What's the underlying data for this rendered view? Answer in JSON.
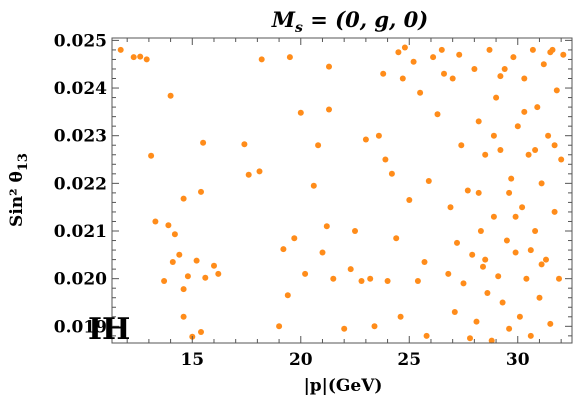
{
  "chart_data": {
    "type": "scatter",
    "title": "Ms = (0, g, 0)",
    "xlabel": "|p|(GeV)",
    "ylabel": "Sin² θ13",
    "panel_label": "IH",
    "xlim": [
      11.3,
      32.5
    ],
    "ylim": [
      0.01865,
      0.02505
    ],
    "x_ticks": [
      15,
      20,
      25,
      30
    ],
    "x_tick_labels": [
      "15",
      "20",
      "25",
      "30"
    ],
    "y_ticks": [
      0.019,
      0.02,
      0.021,
      0.022,
      0.023,
      0.024,
      0.025
    ],
    "y_tick_labels": [
      "0.019",
      "0.020",
      "0.021",
      "0.022",
      "0.023",
      "0.024",
      "0.025"
    ],
    "grid": false,
    "legend": "none",
    "marker_color": "#ff8c1a",
    "series": [
      {
        "points": [
          [
            11.7,
            0.0248
          ],
          [
            12.3,
            0.02465
          ],
          [
            12.6,
            0.02466
          ],
          [
            12.9,
            0.0246
          ],
          [
            13.1,
            0.02258
          ],
          [
            13.3,
            0.0212
          ],
          [
            13.7,
            0.01995
          ],
          [
            13.9,
            0.02112
          ],
          [
            14.0,
            0.02384
          ],
          [
            14.1,
            0.02035
          ],
          [
            14.2,
            0.02093
          ],
          [
            14.4,
            0.0205
          ],
          [
            14.6,
            0.01978
          ],
          [
            14.6,
            0.02168
          ],
          [
            14.6,
            0.0192
          ],
          [
            14.8,
            0.02005
          ],
          [
            15.0,
            0.01878
          ],
          [
            15.2,
            0.02038
          ],
          [
            15.4,
            0.01888
          ],
          [
            15.5,
            0.02285
          ],
          [
            15.4,
            0.02182
          ],
          [
            15.6,
            0.02002
          ],
          [
            16.0,
            0.02027
          ],
          [
            16.2,
            0.0201
          ],
          [
            17.4,
            0.02282
          ],
          [
            17.6,
            0.02218
          ],
          [
            18.1,
            0.02225
          ],
          [
            18.2,
            0.0246
          ],
          [
            19.0,
            0.019
          ],
          [
            19.2,
            0.02062
          ],
          [
            19.4,
            0.01965
          ],
          [
            19.5,
            0.02465
          ],
          [
            19.7,
            0.02085
          ],
          [
            20.0,
            0.02348
          ],
          [
            20.2,
            0.0201
          ],
          [
            20.6,
            0.02195
          ],
          [
            20.8,
            0.0228
          ],
          [
            21.0,
            0.02055
          ],
          [
            21.2,
            0.0211
          ],
          [
            21.3,
            0.02445
          ],
          [
            21.3,
            0.02355
          ],
          [
            21.5,
            0.02
          ],
          [
            22.0,
            0.01895
          ],
          [
            22.3,
            0.0202
          ],
          [
            22.5,
            0.021
          ],
          [
            22.8,
            0.01995
          ],
          [
            23.0,
            0.02292
          ],
          [
            23.2,
            0.02
          ],
          [
            23.4,
            0.019
          ],
          [
            23.6,
            0.023
          ],
          [
            23.8,
            0.0243
          ],
          [
            23.9,
            0.0225
          ],
          [
            24.0,
            0.01995
          ],
          [
            24.2,
            0.0222
          ],
          [
            24.4,
            0.02085
          ],
          [
            24.5,
            0.02475
          ],
          [
            24.6,
            0.0192
          ],
          [
            24.7,
            0.0242
          ],
          [
            24.8,
            0.02485
          ],
          [
            25.0,
            0.02165
          ],
          [
            25.2,
            0.02455
          ],
          [
            25.4,
            0.01995
          ],
          [
            25.5,
            0.0239
          ],
          [
            25.7,
            0.02035
          ],
          [
            25.8,
            0.0188
          ],
          [
            25.9,
            0.02205
          ],
          [
            26.1,
            0.02465
          ],
          [
            26.3,
            0.02345
          ],
          [
            26.5,
            0.0248
          ],
          [
            26.6,
            0.0243
          ],
          [
            26.8,
            0.0201
          ],
          [
            26.9,
            0.0215
          ],
          [
            27.0,
            0.0242
          ],
          [
            27.1,
            0.0193
          ],
          [
            27.2,
            0.02075
          ],
          [
            27.3,
            0.0247
          ],
          [
            27.4,
            0.0228
          ],
          [
            27.5,
            0.0199
          ],
          [
            27.7,
            0.02185
          ],
          [
            27.8,
            0.01875
          ],
          [
            27.9,
            0.0205
          ],
          [
            28.0,
            0.0244
          ],
          [
            28.1,
            0.0191
          ],
          [
            28.2,
            0.0233
          ],
          [
            28.3,
            0.021
          ],
          [
            28.4,
            0.02025
          ],
          [
            28.5,
            0.0226
          ],
          [
            28.6,
            0.0197
          ],
          [
            28.7,
            0.0248
          ],
          [
            28.8,
            0.0187
          ],
          [
            28.9,
            0.0213
          ],
          [
            29.0,
            0.0238
          ],
          [
            29.1,
            0.02005
          ],
          [
            29.2,
            0.0227
          ],
          [
            29.3,
            0.0195
          ],
          [
            29.4,
            0.0244
          ],
          [
            29.5,
            0.0208
          ],
          [
            29.6,
            0.01895
          ],
          [
            29.7,
            0.0221
          ],
          [
            29.8,
            0.02465
          ],
          [
            29.9,
            0.02055
          ],
          [
            30.0,
            0.0232
          ],
          [
            30.1,
            0.0192
          ],
          [
            30.2,
            0.0215
          ],
          [
            30.3,
            0.0242
          ],
          [
            30.4,
            0.02
          ],
          [
            30.5,
            0.0226
          ],
          [
            30.6,
            0.0188
          ],
          [
            30.7,
            0.0248
          ],
          [
            30.8,
            0.021
          ],
          [
            30.9,
            0.0236
          ],
          [
            31.0,
            0.0196
          ],
          [
            31.1,
            0.022
          ],
          [
            31.2,
            0.0245
          ],
          [
            31.3,
            0.0204
          ],
          [
            31.4,
            0.023
          ],
          [
            31.5,
            0.01905
          ],
          [
            31.6,
            0.0248
          ],
          [
            31.7,
            0.0214
          ],
          [
            31.8,
            0.02395
          ],
          [
            31.9,
            0.02
          ],
          [
            32.0,
            0.0225
          ],
          [
            32.1,
            0.0247
          ],
          [
            31.5,
            0.02475
          ],
          [
            29.2,
            0.02425
          ],
          [
            28.5,
            0.0204
          ],
          [
            30.8,
            0.0227
          ],
          [
            29.6,
            0.0218
          ],
          [
            28.9,
            0.023
          ],
          [
            31.1,
            0.0203
          ],
          [
            30.3,
            0.0235
          ],
          [
            29.9,
            0.0213
          ],
          [
            31.7,
            0.0228
          ],
          [
            28.2,
            0.0218
          ],
          [
            30.6,
            0.0206
          ]
        ]
      }
    ]
  }
}
